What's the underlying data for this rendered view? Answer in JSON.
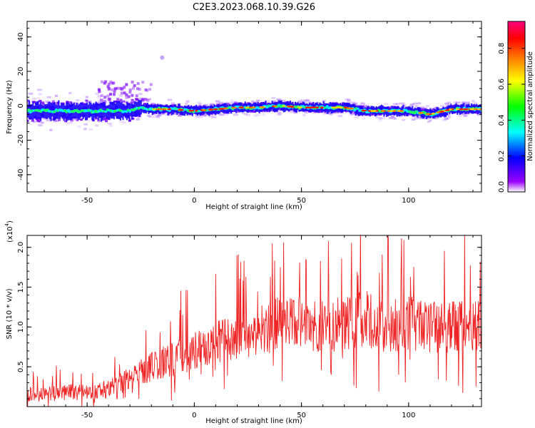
{
  "title": "C2E3.2023.068.10.39.G26",
  "chart_data": [
    {
      "type": "heatmap",
      "xlabel": "Height of straight line (km)",
      "ylabel": "Frequency (Hz)",
      "xlim": [
        -78,
        134
      ],
      "ylim": [
        -50,
        49
      ],
      "xticks": [
        -50,
        0,
        50,
        100
      ],
      "xtick_labels": [
        "-50",
        "0",
        "50",
        "100"
      ],
      "yticks": [
        -40,
        -20,
        0,
        20,
        40
      ],
      "ytick_labels": [
        "-40",
        "-20",
        "0",
        "20",
        "40"
      ],
      "colorbar": {
        "label": "Normalized spectral amplitude",
        "range": [
          0.0,
          0.95
        ],
        "ticks": [
          0.0,
          0.2,
          0.4,
          0.6,
          0.8
        ],
        "tick_labels": [
          "0.0",
          "0.2",
          "0.4",
          "0.6",
          "0.8"
        ],
        "colors": [
          "#ffffff",
          "#9a00ff",
          "#0000ff",
          "#00ffff",
          "#00ff00",
          "#ffff00",
          "#ff8000",
          "#ff0000",
          "#ff0080"
        ]
      },
      "ridge": {
        "x": [
          -78,
          -70,
          -60,
          -50,
          -40,
          -30,
          -25,
          -20,
          -10,
          0,
          10,
          20,
          30,
          40,
          50,
          60,
          70,
          80,
          90,
          100,
          110,
          120,
          134
        ],
        "y": [
          -3,
          -3,
          -3,
          -3,
          -3,
          -3,
          -1,
          -2,
          -2,
          -3,
          -2,
          -1,
          -1,
          0,
          -1,
          -1,
          -1,
          -3,
          -3,
          -3,
          -5,
          -2,
          -2
        ]
      },
      "outlier": {
        "x": -15,
        "y": 28
      }
    },
    {
      "type": "line",
      "xlabel": "Height of straight line (km)",
      "ylabel": "SNR (10 * v/v)",
      "scale_label": "(x10",
      "scale_exp": "4",
      "scale_close": ")",
      "xlim": [
        -78,
        134
      ],
      "ylim": [
        0.0,
        2.15
      ],
      "xticks": [
        -50,
        0,
        50,
        100
      ],
      "xtick_labels": [
        "-50",
        "0",
        "50",
        "100"
      ],
      "yticks": [
        0.5,
        1.0,
        1.5,
        2.0
      ],
      "ytick_labels": [
        "0.5",
        "1.0",
        "1.5",
        "2.0"
      ],
      "color": "#ee2222",
      "trend": {
        "x": [
          -78,
          -60,
          -50,
          -40,
          -30,
          -20,
          -10,
          0,
          10,
          20,
          30,
          40,
          50,
          60,
          70,
          80,
          90,
          100,
          110,
          120,
          134
        ],
        "y": [
          0.15,
          0.18,
          0.18,
          0.22,
          0.35,
          0.5,
          0.6,
          0.7,
          0.8,
          0.9,
          0.95,
          1.05,
          1.05,
          1.0,
          1.05,
          1.1,
          1.0,
          1.05,
          1.0,
          1.0,
          1.0
        ]
      }
    }
  ]
}
